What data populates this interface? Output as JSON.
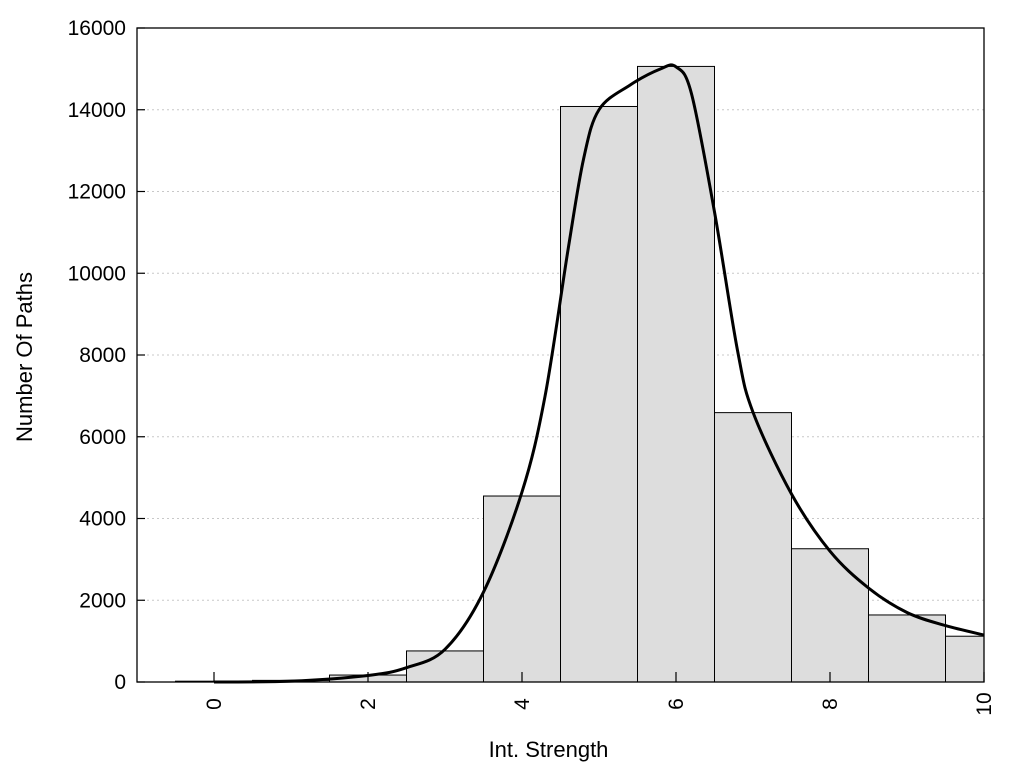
{
  "chart_data": {
    "type": "bar",
    "title": "",
    "xlabel": "Int. Strength",
    "ylabel": "Number Of Paths",
    "xlim": [
      -1,
      10
    ],
    "ylim": [
      0,
      16000
    ],
    "x_ticks": [
      "0",
      "2",
      "4",
      "6",
      "8",
      "10"
    ],
    "y_ticks": [
      "0",
      "2000",
      "4000",
      "6000",
      "8000",
      "10000",
      "12000",
      "14000",
      "16000"
    ],
    "grid": "horizontal dotted",
    "bar_color": "#dddddd",
    "series": [
      {
        "type": "histogram",
        "bins": [
          {
            "x": 0,
            "value": 20
          },
          {
            "x": 1,
            "value": 40
          },
          {
            "x": 2,
            "value": 170
          },
          {
            "x": 3,
            "value": 760
          },
          {
            "x": 4,
            "value": 4550
          },
          {
            "x": 5,
            "value": 14080
          },
          {
            "x": 6,
            "value": 15060
          },
          {
            "x": 7,
            "value": 6590
          },
          {
            "x": 8,
            "value": 3260
          },
          {
            "x": 9,
            "value": 1640
          },
          {
            "x": 10,
            "value": 1120
          }
        ]
      },
      {
        "type": "line",
        "points": [
          [
            0,
            0
          ],
          [
            1,
            20
          ],
          [
            2,
            160
          ],
          [
            2.5,
            350
          ],
          [
            3,
            800
          ],
          [
            3.5,
            2200
          ],
          [
            4,
            4650
          ],
          [
            4.3,
            7000
          ],
          [
            4.6,
            10600
          ],
          [
            4.8,
            12800
          ],
          [
            5,
            14000
          ],
          [
            5.4,
            14600
          ],
          [
            5.8,
            15000
          ],
          [
            6,
            15050
          ],
          [
            6.2,
            14400
          ],
          [
            6.5,
            11500
          ],
          [
            6.8,
            8100
          ],
          [
            7,
            6600
          ],
          [
            7.5,
            4600
          ],
          [
            8,
            3200
          ],
          [
            8.5,
            2300
          ],
          [
            9,
            1700
          ],
          [
            9.5,
            1380
          ],
          [
            10,
            1150
          ]
        ]
      }
    ]
  }
}
